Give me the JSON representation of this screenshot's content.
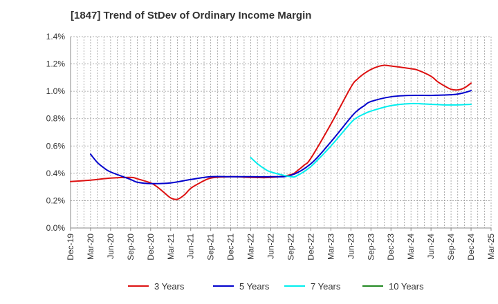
{
  "chart_data": {
    "type": "line",
    "title": "[1847]  Trend of StDev of Ordinary Income Margin",
    "xlabel": "",
    "ylabel": "",
    "x_ticks": [
      "Dec-19",
      "Mar-20",
      "Jun-20",
      "Sep-20",
      "Dec-20",
      "Mar-21",
      "Jun-21",
      "Sep-21",
      "Dec-21",
      "Mar-22",
      "Jun-22",
      "Sep-22",
      "Dec-22",
      "Mar-23",
      "Jun-23",
      "Sep-23",
      "Dec-23",
      "Mar-24",
      "Jun-24",
      "Sep-24",
      "Dec-24",
      "Mar-25"
    ],
    "y_ticks": [
      "0.0%",
      "0.2%",
      "0.4%",
      "0.6%",
      "0.8%",
      "1.0%",
      "1.2%",
      "1.4%"
    ],
    "ylim": [
      0,
      1.4
    ],
    "y_unit": "%",
    "grid": true,
    "legend_position": "bottom",
    "series": [
      {
        "name": "3 Years",
        "color": "#dd1111",
        "x": [
          "Dec-19",
          "Mar-20",
          "Jun-20",
          "Sep-20",
          "Oct-20",
          "Dec-20",
          "Jan-21",
          "Feb-21",
          "Mar-21",
          "Apr-21",
          "May-21",
          "Jun-21",
          "Jul-21",
          "Sep-21",
          "Dec-21",
          "Mar-22",
          "Jun-22",
          "Sep-22",
          "Oct-22",
          "Nov-22",
          "Dec-22",
          "Mar-23",
          "Jun-23",
          "Jul-23",
          "Aug-23",
          "Sep-23",
          "Oct-23",
          "Nov-23",
          "Dec-23",
          "Mar-24",
          "Apr-24",
          "Jun-24",
          "Jul-24",
          "Aug-24",
          "Sep-24",
          "Oct-24",
          "Nov-24",
          "Dec-24"
        ],
        "values": [
          0.34,
          0.35,
          0.365,
          0.37,
          0.36,
          0.33,
          0.3,
          0.26,
          0.22,
          0.21,
          0.24,
          0.29,
          0.32,
          0.365,
          0.375,
          0.37,
          0.37,
          0.39,
          0.42,
          0.46,
          0.51,
          0.76,
          1.03,
          1.09,
          1.13,
          1.16,
          1.18,
          1.19,
          1.185,
          1.165,
          1.155,
          1.11,
          1.07,
          1.04,
          1.015,
          1.01,
          1.025,
          1.06
        ]
      },
      {
        "name": "5 Years",
        "color": "#0000cc",
        "x": [
          "Mar-20",
          "Apr-20",
          "May-20",
          "Jun-20",
          "Sep-20",
          "Oct-20",
          "Dec-20",
          "Mar-21",
          "Jun-21",
          "Sep-21",
          "Dec-21",
          "Mar-22",
          "Jun-22",
          "Sep-22",
          "Dec-22",
          "Mar-23",
          "Jun-23",
          "Jul-23",
          "Aug-23",
          "Sep-23",
          "Dec-23",
          "Mar-24",
          "Jun-24",
          "Sep-24",
          "Oct-24",
          "Nov-24",
          "Dec-24"
        ],
        "values": [
          0.54,
          0.48,
          0.44,
          0.41,
          0.355,
          0.335,
          0.325,
          0.33,
          0.355,
          0.375,
          0.375,
          0.375,
          0.375,
          0.385,
          0.47,
          0.63,
          0.81,
          0.86,
          0.895,
          0.925,
          0.96,
          0.97,
          0.97,
          0.975,
          0.98,
          0.99,
          1.005
        ]
      },
      {
        "name": "7 Years",
        "color": "#00eeee",
        "x": [
          "Mar-22",
          "Apr-22",
          "May-22",
          "Jun-22",
          "Sep-22",
          "Oct-22",
          "Dec-22",
          "Mar-23",
          "Jun-23",
          "Jul-23",
          "Aug-23",
          "Sep-23",
          "Dec-23",
          "Mar-24",
          "Jun-24",
          "Sep-24",
          "Dec-24"
        ],
        "values": [
          0.515,
          0.47,
          0.435,
          0.41,
          0.375,
          0.385,
          0.45,
          0.6,
          0.77,
          0.81,
          0.835,
          0.855,
          0.895,
          0.91,
          0.905,
          0.9,
          0.905
        ]
      },
      {
        "name": "10 Years",
        "color": "#228822",
        "x": [],
        "values": []
      }
    ]
  }
}
